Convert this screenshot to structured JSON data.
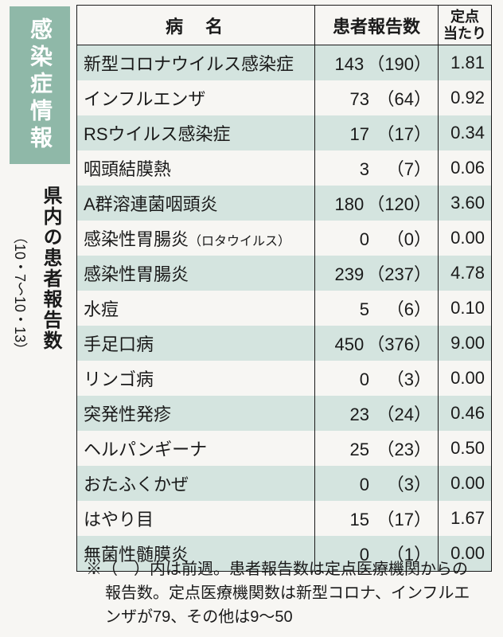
{
  "sidebar": {
    "badge": "感染症情報",
    "subtitle": "県内の患者報告数",
    "daterange": "（10・7〜10・13）"
  },
  "colors": {
    "badge_bg": "#8fb8a8",
    "badge_fg": "#ffffff",
    "row_odd_bg": "#d4e4df",
    "row_even_bg": "#f7f6f3",
    "border": "#1a1a1a",
    "text": "#1a1a1a",
    "page_bg": "#f7f6f3"
  },
  "table": {
    "type": "table",
    "columns": {
      "name": "病名",
      "count": "患者報告数",
      "perpoint": "定点当たり"
    },
    "rows": [
      {
        "name": "新型コロナウイルス感染症",
        "current": "143",
        "prev": "（190）",
        "perpoint": "1.81"
      },
      {
        "name": "インフルエンザ",
        "current": "73",
        "prev": "（64）",
        "perpoint": "0.92"
      },
      {
        "name": "RSウイルス感染症",
        "current": "17",
        "prev": "（17）",
        "perpoint": "0.34"
      },
      {
        "name": "咽頭結膜熱",
        "current": "3",
        "prev": "（7）",
        "perpoint": "0.06"
      },
      {
        "name": "A群溶連菌咽頭炎",
        "current": "180",
        "prev": "（120）",
        "perpoint": "3.60"
      },
      {
        "name": "感染性胃腸炎",
        "name_suffix": "（ロタウイルス）",
        "current": "0",
        "prev": "（0）",
        "perpoint": "0.00"
      },
      {
        "name": "感染性胃腸炎",
        "current": "239",
        "prev": "（237）",
        "perpoint": "4.78"
      },
      {
        "name": "水痘",
        "current": "5",
        "prev": "（6）",
        "perpoint": "0.10"
      },
      {
        "name": "手足口病",
        "current": "450",
        "prev": "（376）",
        "perpoint": "9.00"
      },
      {
        "name": "リンゴ病",
        "current": "0",
        "prev": "（3）",
        "perpoint": "0.00"
      },
      {
        "name": "突発性発疹",
        "current": "23",
        "prev": "（24）",
        "perpoint": "0.46"
      },
      {
        "name": "ヘルパンギーナ",
        "current": "25",
        "prev": "（23）",
        "perpoint": "0.50"
      },
      {
        "name": "おたふくかぜ",
        "current": "0",
        "prev": "（3）",
        "perpoint": "0.00"
      },
      {
        "name": "はやり目",
        "current": "15",
        "prev": "（17）",
        "perpoint": "1.67"
      },
      {
        "name": "無菌性髄膜炎",
        "current": "0",
        "prev": "（1）",
        "perpoint": "0.00"
      }
    ]
  },
  "footnote": "※（　）内は前週。患者報告数は定点医療機関からの報告数。定点医療機関数は新型コロナ、インフルエンザが79、その他は9〜50"
}
